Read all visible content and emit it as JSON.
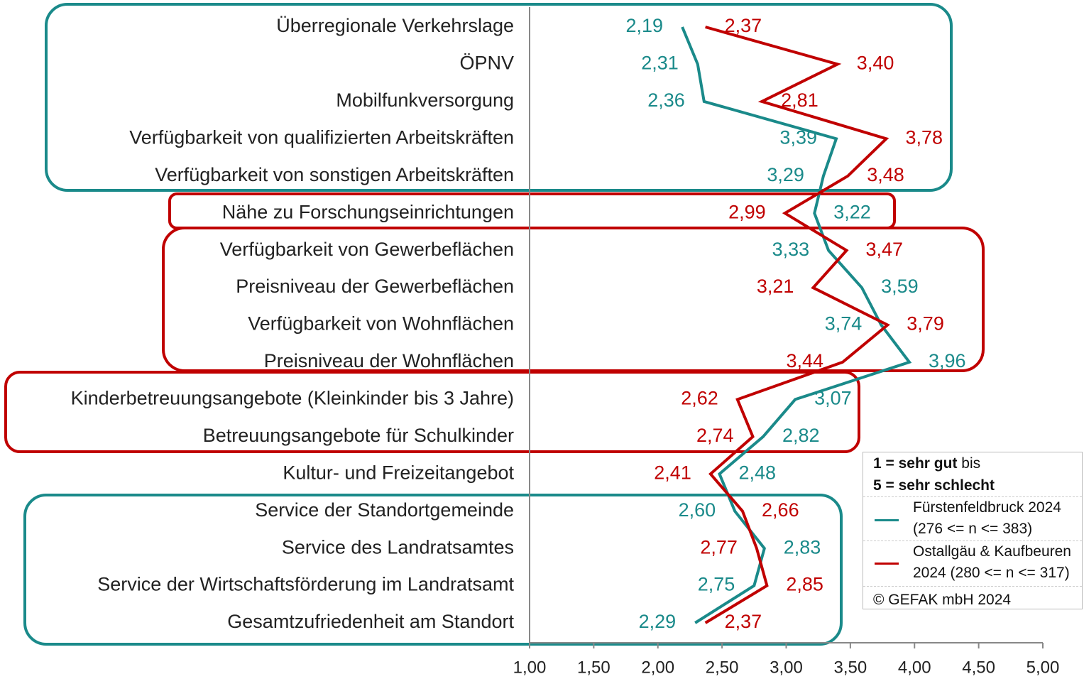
{
  "chart_data": {
    "type": "line",
    "orientation": "horizontal",
    "categories": [
      "Überregionale Verkehrslage",
      "ÖPNV",
      "Mobilfunkversorgung",
      "Verfügbarkeit von qualifizierten Arbeitskräften",
      "Verfügbarkeit von sonstigen Arbeitskräften",
      "Nähe zu Forschungseinrichtungen",
      "Verfügbarkeit von Gewerbeflächen",
      "Preisniveau der Gewerbeflächen",
      "Verfügbarkeit von Wohnflächen",
      "Preisniveau der Wohnflächen",
      "Kinderbetreuungsangebote (Kleinkinder bis 3 Jahre)",
      "Betreuungsangebote für Schulkinder",
      "Kultur- und Freizeitangebot",
      "Service der Standortgemeinde",
      "Service des Landratsamtes",
      "Service der Wirtschaftsförderung im Landratsamt",
      "Gesamtzufriedenheit am Standort"
    ],
    "series": [
      {
        "name": "Fürstenfeldbruck 2024 (276 <= n <= 383)",
        "color": "#1a8a8a",
        "values": [
          2.19,
          2.31,
          2.36,
          3.39,
          3.29,
          3.22,
          3.33,
          3.59,
          3.74,
          3.96,
          3.07,
          2.82,
          2.48,
          2.6,
          2.83,
          2.75,
          2.29
        ],
        "value_labels": [
          "2,19",
          "2,31",
          "2,36",
          "3,39",
          "3,29",
          "3,22",
          "3,33",
          "3,59",
          "3,74",
          "3,96",
          "3,07",
          "2,82",
          "2,48",
          "2,60",
          "2,83",
          "2,75",
          "2,29"
        ]
      },
      {
        "name": "Ostallgäu & Kaufbeuren 2024 (280 <= n <= 317)",
        "color": "#c00000",
        "values": [
          2.37,
          3.4,
          2.81,
          3.78,
          3.48,
          2.99,
          3.47,
          3.21,
          3.79,
          3.44,
          2.62,
          2.74,
          2.41,
          2.66,
          2.77,
          2.85,
          2.37
        ],
        "value_labels": [
          "2,37",
          "3,40",
          "2,81",
          "3,78",
          "3,48",
          "2,99",
          "3,47",
          "3,21",
          "3,79",
          "3,44",
          "2,62",
          "2,74",
          "2,41",
          "2,66",
          "2,77",
          "2,85",
          "2,37"
        ]
      }
    ],
    "xlim": [
      1,
      5
    ],
    "xticks": [
      {
        "value": 1,
        "label": "1,00"
      },
      {
        "value": 1.5,
        "label": "1,50"
      },
      {
        "value": 2,
        "label": "2,00"
      },
      {
        "value": 2.5,
        "label": "2,50"
      },
      {
        "value": 3,
        "label": "3,00"
      },
      {
        "value": 3.5,
        "label": "3,50"
      },
      {
        "value": 4,
        "label": "4,00"
      },
      {
        "value": 4.5,
        "label": "4,50"
      },
      {
        "value": 5,
        "label": "5,00"
      }
    ],
    "legend_note": {
      "scale_best": "1 = sehr gut",
      "scale_joiner": "bis",
      "scale_worst": "5 = sehr schlecht"
    },
    "copyright": "© GEFAK mbH 2024"
  }
}
